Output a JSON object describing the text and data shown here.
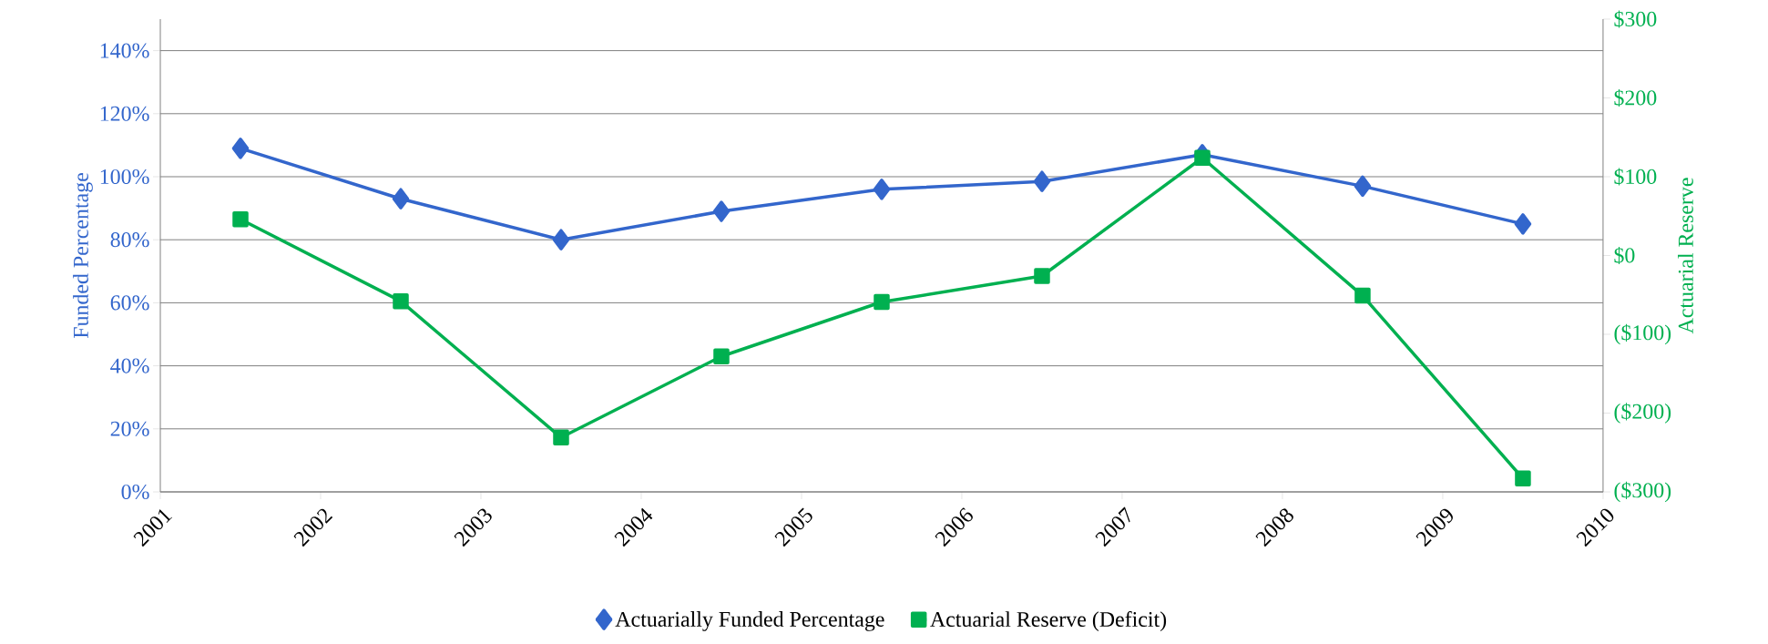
{
  "chart_data": {
    "type": "line",
    "x": [
      2001.5,
      2002.5,
      2003.5,
      2004.5,
      2005.5,
      2006.5,
      2007.5,
      2008.5,
      2009.5
    ],
    "xlim": [
      2001,
      2010
    ],
    "xticks": [
      2001,
      2002,
      2003,
      2004,
      2005,
      2006,
      2007,
      2008,
      2009,
      2010
    ],
    "ylim": [
      0,
      150
    ],
    "yticks": [
      {
        "value": 0,
        "label": "0%"
      },
      {
        "value": 20,
        "label": "20%"
      },
      {
        "value": 40,
        "label": "40%"
      },
      {
        "value": 60,
        "label": "60%"
      },
      {
        "value": 80,
        "label": "80%"
      },
      {
        "value": 100,
        "label": "100%"
      },
      {
        "value": 120,
        "label": "120%"
      },
      {
        "value": 140,
        "label": "140%"
      }
    ],
    "y2lim": [
      -300,
      300
    ],
    "y2ticks": [
      {
        "value": -300,
        "label": "($300)"
      },
      {
        "value": -200,
        "label": "($200)"
      },
      {
        "value": -100,
        "label": "($100)"
      },
      {
        "value": 0,
        "label": "$0"
      },
      {
        "value": 100,
        "label": "$100"
      },
      {
        "value": 200,
        "label": "$200"
      },
      {
        "value": 300,
        "label": "$300"
      }
    ],
    "ylabel": "Funded Percentage",
    "y2label": "Actuarial Reserve",
    "grid": "y",
    "legend": "bottom",
    "line_style": "solid",
    "series": [
      {
        "name": "Actuarially Funded Percentage",
        "color": "#3366cc",
        "marker": "diamond",
        "values": [
          109,
          93,
          80,
          89,
          96,
          98.5,
          107,
          97,
          85
        ]
      },
      {
        "name": "Actuarial Reserve (Deficit)",
        "color": "#00b050",
        "marker": "square",
        "axis": "y2",
        "values": [
          46,
          -58,
          -231,
          -128,
          -59,
          -26,
          124,
          -51,
          -283
        ]
      }
    ]
  }
}
